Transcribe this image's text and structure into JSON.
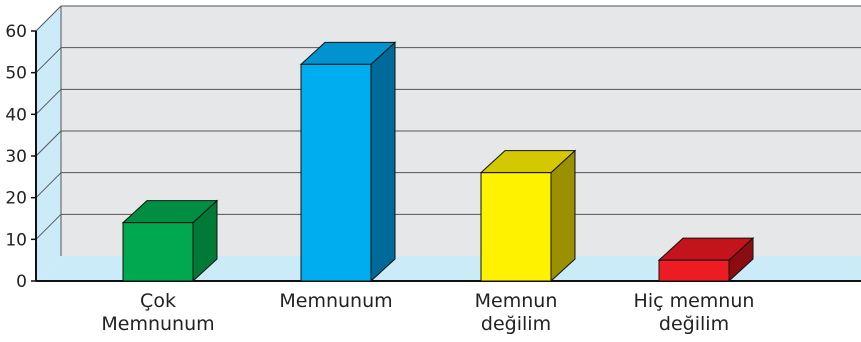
{
  "chart_data": {
    "type": "bar",
    "categories": [
      [
        "Çok",
        "Memnunum"
      ],
      [
        "Memnunum"
      ],
      [
        "Memnun",
        "değilim"
      ],
      [
        "Hiç memnun",
        "değilim"
      ]
    ],
    "values": [
      14,
      52,
      26,
      5
    ],
    "colors": [
      {
        "front": "#00A84F",
        "top": "#008F42",
        "side": "#007A36"
      },
      {
        "front": "#00AEEF",
        "top": "#0093D0",
        "side": "#006A9A"
      },
      {
        "front": "#FFF200",
        "top": "#D4C800",
        "side": "#9A9000"
      },
      {
        "front": "#ED1C24",
        "top": "#C4141B",
        "side": "#8B0D12"
      }
    ],
    "yticks": [
      0,
      10,
      20,
      30,
      40,
      50,
      60
    ],
    "ylim": [
      0,
      60
    ],
    "grid": true,
    "legend": "none",
    "title": "",
    "xlabel": "",
    "ylabel": "",
    "style": "3d",
    "wall_color": "#E6E7E8",
    "floor_color": "#CCEBF8"
  }
}
